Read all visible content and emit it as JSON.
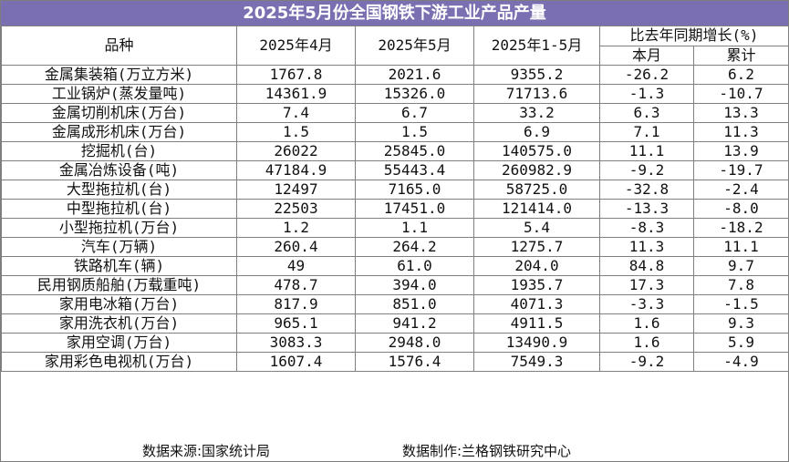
{
  "title": "2025年5月份全国钢铁下游工业产品产量",
  "headers": {
    "name": "品种",
    "col_apr": "2025年4月",
    "col_may": "2025年5月",
    "col_ytd": "2025年1-5月",
    "growth_group": "比去年同期增长(%)",
    "growth_month": "本月",
    "growth_cum": "累计"
  },
  "rows": [
    {
      "name": "金属集装箱(万立方米)",
      "apr": "1767.8",
      "may": "2021.6",
      "ytd": "9355.2",
      "month": "-26.2",
      "cum": "6.2"
    },
    {
      "name": "工业锅炉(蒸发量吨)",
      "apr": "14361.9",
      "may": "15326.0",
      "ytd": "71713.6",
      "month": "-1.3",
      "cum": "-10.7"
    },
    {
      "name": "金属切削机床(万台)",
      "apr": "7.4",
      "may": "6.7",
      "ytd": "33.2",
      "month": "6.3",
      "cum": "13.3"
    },
    {
      "name": "金属成形机床(万台)",
      "apr": "1.5",
      "may": "1.5",
      "ytd": "6.9",
      "month": "7.1",
      "cum": "11.3"
    },
    {
      "name": "挖掘机(台)",
      "apr": "26022",
      "may": "25845.0",
      "ytd": "140575.0",
      "month": "11.1",
      "cum": "13.9"
    },
    {
      "name": "金属冶炼设备(吨)",
      "apr": "47184.9",
      "may": "55443.4",
      "ytd": "260982.9",
      "month": "-9.2",
      "cum": "-19.7"
    },
    {
      "name": "大型拖拉机(台)",
      "apr": "12497",
      "may": "7165.0",
      "ytd": "58725.0",
      "month": "-32.8",
      "cum": "-2.4"
    },
    {
      "name": "中型拖拉机(台)",
      "apr": "22503",
      "may": "17451.0",
      "ytd": "121414.0",
      "month": "-13.3",
      "cum": "-8.0"
    },
    {
      "name": "小型拖拉机(万台)",
      "apr": "1.2",
      "may": "1.1",
      "ytd": "5.4",
      "month": "-8.3",
      "cum": "-18.2"
    },
    {
      "name": "汽车(万辆)",
      "apr": "260.4",
      "may": "264.2",
      "ytd": "1275.7",
      "month": "11.3",
      "cum": "11.1"
    },
    {
      "name": "铁路机车(辆)",
      "apr": "49",
      "may": "61.0",
      "ytd": "204.0",
      "month": "84.8",
      "cum": "9.7"
    },
    {
      "name": "民用钢质船舶(万载重吨)",
      "apr": "478.7",
      "may": "394.0",
      "ytd": "1935.7",
      "month": "17.3",
      "cum": "7.8"
    },
    {
      "name": "家用电冰箱(万台)",
      "apr": "817.9",
      "may": "851.0",
      "ytd": "4071.3",
      "month": "-3.3",
      "cum": "-1.5"
    },
    {
      "name": "家用洗衣机(万台)",
      "apr": "965.1",
      "may": "941.2",
      "ytd": "4911.5",
      "month": "1.6",
      "cum": "9.3"
    },
    {
      "name": "家用空调(万台)",
      "apr": "3083.3",
      "may": "2948.0",
      "ytd": "13490.9",
      "month": "1.6",
      "cum": "5.9"
    },
    {
      "name": "家用彩色电视机(万台)",
      "apr": "1607.4",
      "may": "1576.4",
      "ytd": "7549.3",
      "month": "-9.2",
      "cum": "-4.9"
    }
  ],
  "footer": {
    "source": "数据来源:国家统计局",
    "maker": "数据制作:兰格钢铁研究中心"
  },
  "colors": {
    "title_bg": "#7a6fb0",
    "title_text": "#ffffff",
    "grid": "#808080"
  }
}
